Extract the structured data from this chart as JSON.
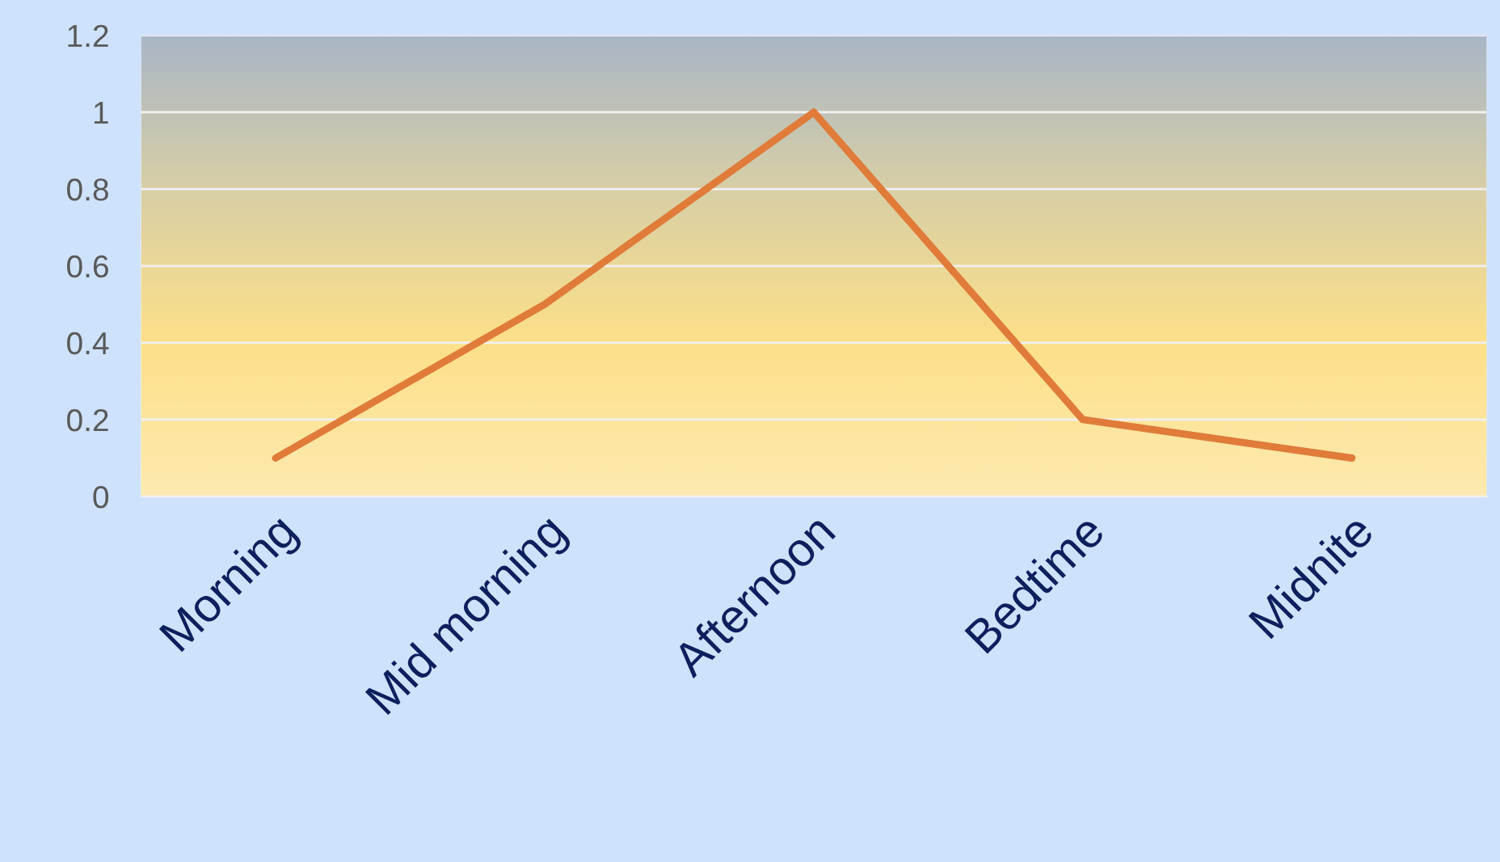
{
  "chart_data": {
    "type": "line",
    "categories": [
      "Morning",
      "Mid morning",
      "Afternoon",
      "Bedtime",
      "Midnite"
    ],
    "series": [
      {
        "color": "#e07b39",
        "values": [
          0.1,
          0.5,
          1.0,
          0.2,
          0.1
        ]
      }
    ],
    "ylim": [
      0,
      1.2
    ],
    "yticks": [
      0,
      0.2,
      0.4,
      0.6,
      0.8,
      1,
      1.2
    ],
    "grid": "y",
    "marker": "none",
    "line_style": "solid"
  }
}
